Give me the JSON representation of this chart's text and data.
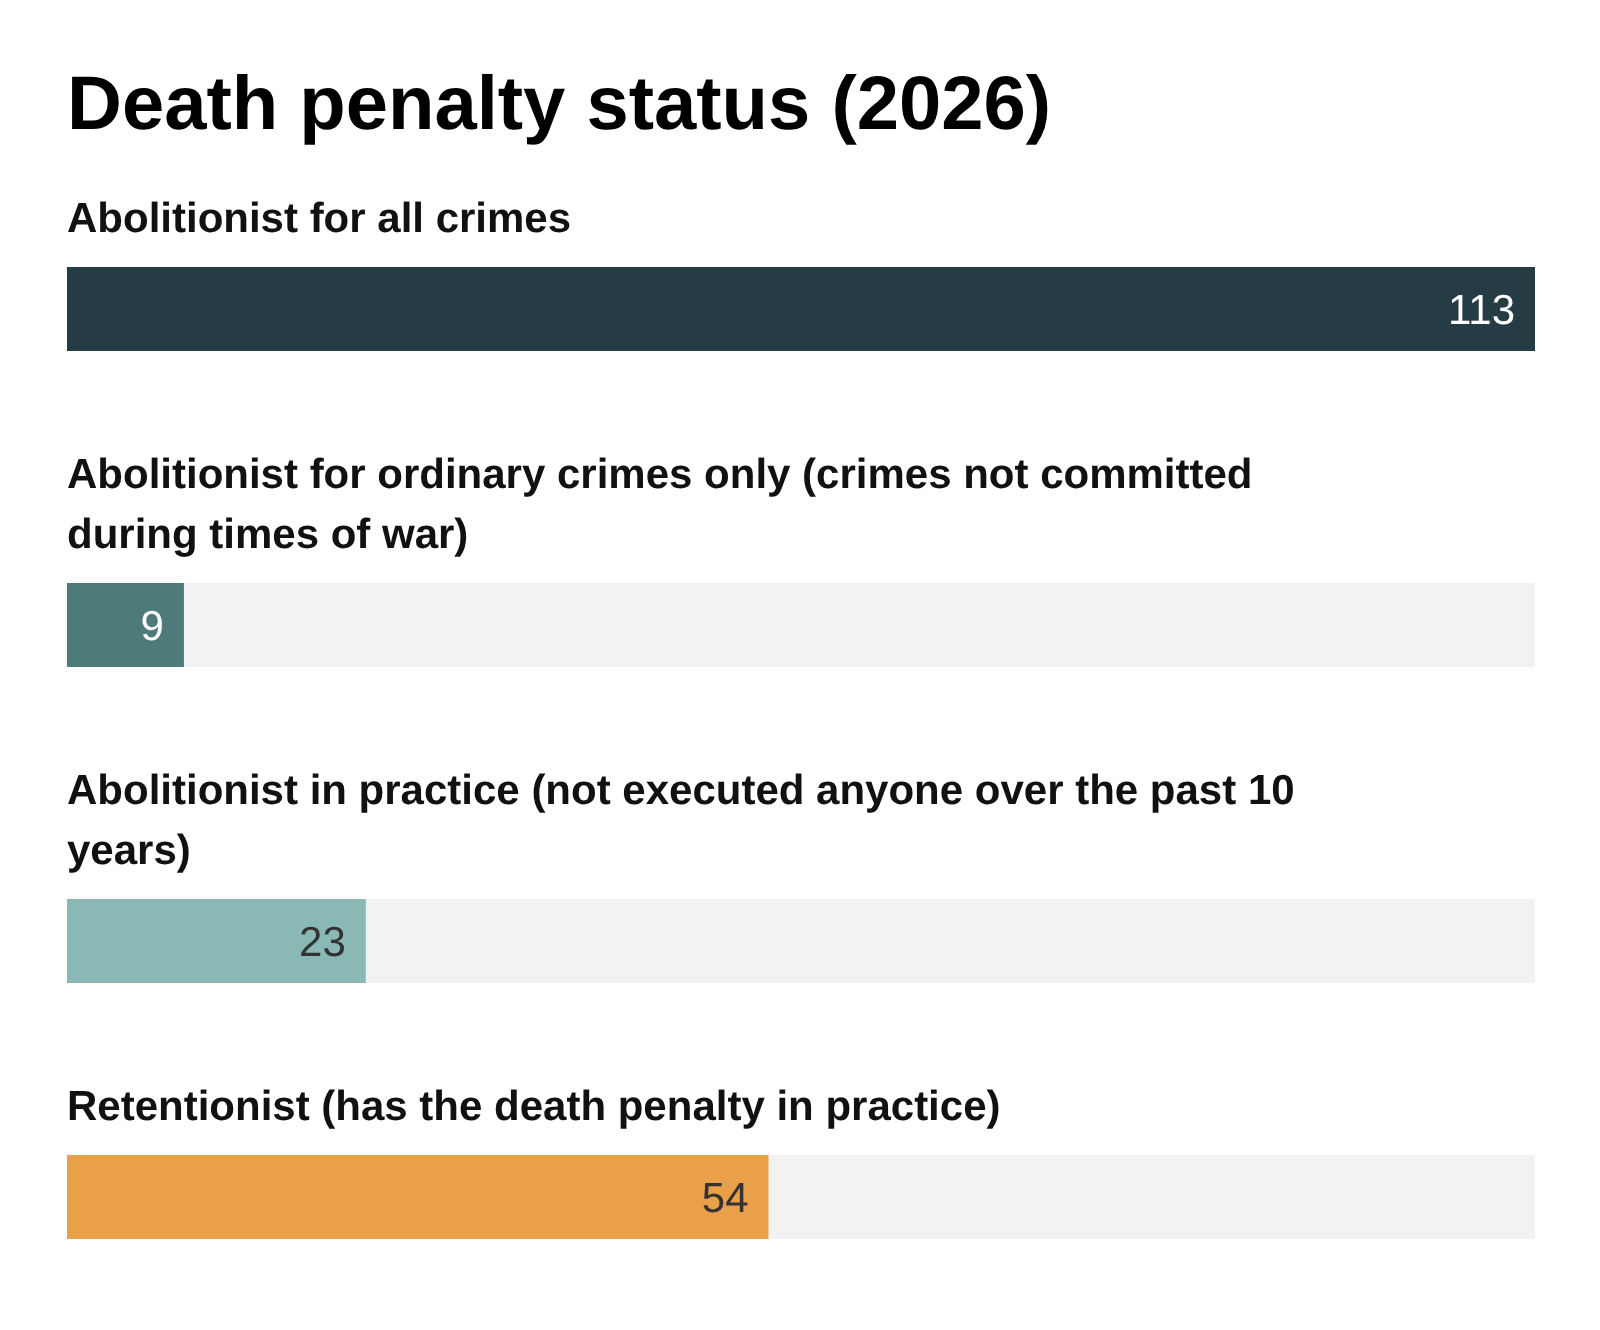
{
  "chart_data": {
    "type": "bar",
    "orientation": "horizontal",
    "title": "Death penalty status (2026)",
    "categories": [
      "Abolitionist for all crimes",
      "Abolitionist for ordinary crimes only (crimes not committed during times of war)",
      "Abolitionist in practice (not executed anyone over the past 10 years)",
      "Retentionist (has the death penalty in practice)"
    ],
    "values": [
      113,
      9,
      23,
      54
    ],
    "colors": [
      "#263c45",
      "#4e7a7a",
      "#8ab8b5",
      "#e9a049"
    ],
    "xlim": [
      0,
      113
    ],
    "data_labels": true,
    "grid": false
  }
}
